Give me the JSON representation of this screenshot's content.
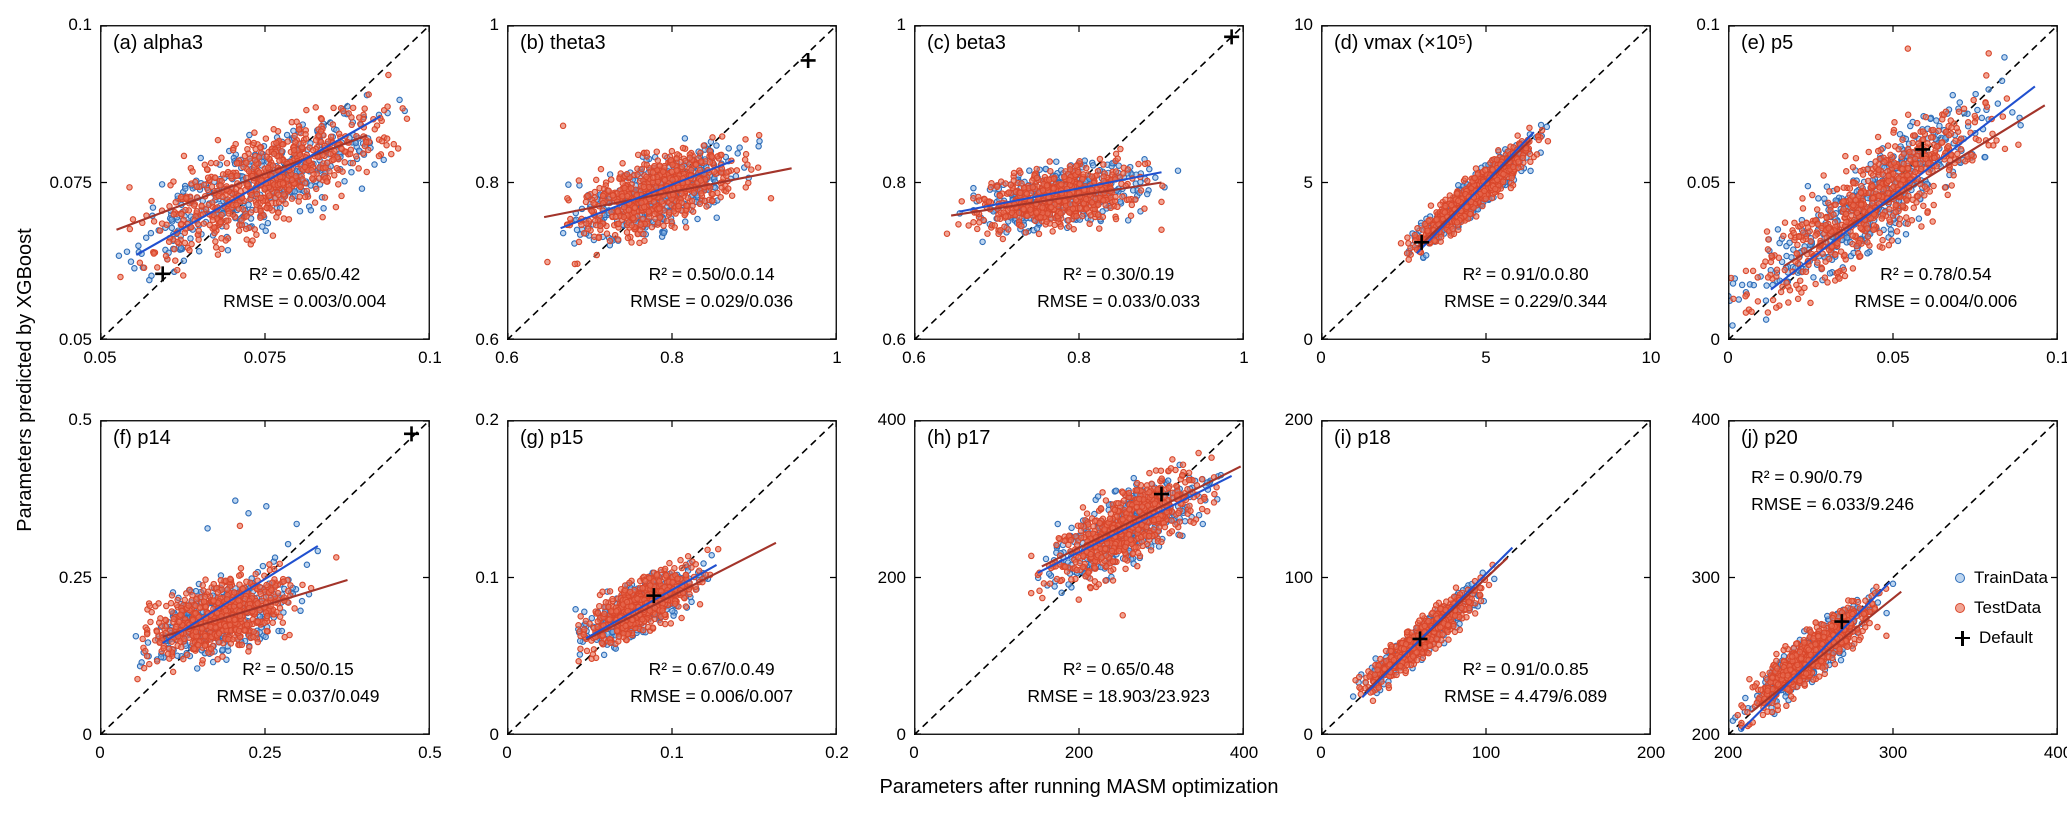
{
  "colors": {
    "train_edge": "#2f6db8",
    "train_fill": "rgba(133,178,227,0.55)",
    "test_edge": "#d9472b",
    "test_fill": "rgba(232,109,84,0.62)",
    "train_line": "#2050cf",
    "test_line": "#a3342a",
    "identity_line": "#000000",
    "default_marker": "#000000",
    "axis": "#000000"
  },
  "chart_data": {
    "type": "scatter",
    "xlabel": "Parameters after running MASM optimization",
    "ylabel": "Parameters predicted by XGBoost",
    "grid": false,
    "legend": {
      "position": "right-middle-of-panel-j",
      "items": [
        {
          "label": "TrainData",
          "series": "train",
          "marker": "circle"
        },
        {
          "label": "TestData",
          "series": "test",
          "marker": "circle"
        },
        {
          "label": "Default",
          "series": "default",
          "marker": "plus"
        }
      ]
    },
    "panels": [
      {
        "id": "a",
        "title": "(a) alpha3",
        "xlim": [
          0.05,
          0.1
        ],
        "ylim": [
          0.05,
          0.1
        ],
        "xticks": [
          0.05,
          0.075,
          0.1
        ],
        "xtick_labels": [
          "0.05",
          "0.075",
          "0.1"
        ],
        "yticks": [
          0.05,
          0.075,
          0.1
        ],
        "ytick_labels": [
          "0.05",
          "0.075",
          "0.1"
        ],
        "r2_text": "R² = 0.65/0.42",
        "rmse_text": "RMSE = 0.003/0.004",
        "annot": {
          "fx": 0.62,
          "fy": 0.75,
          "align": "center"
        },
        "default_point": [
          0.0595,
          0.0605
        ],
        "fit_train": [
          [
            0.0555,
            0.0635
          ],
          [
            0.0925,
            0.0855
          ]
        ],
        "fit_test": [
          [
            0.0525,
            0.0675
          ],
          [
            0.0905,
            0.0825
          ]
        ],
        "cluster": {
          "cx": 0.0755,
          "cy": 0.0755,
          "sx": 0.0085,
          "sy": 0.0052,
          "rho": 0.72,
          "n_train": 380,
          "n_test": 640,
          "seed": 101
        },
        "outliers": [
          [
            0.0565,
            0.0615,
            "train"
          ],
          [
            0.0578,
            0.0602,
            "train"
          ],
          [
            0.0602,
            0.0628,
            "train"
          ],
          [
            0.0617,
            0.0611,
            "test"
          ],
          [
            0.0563,
            0.0637,
            "train"
          ]
        ]
      },
      {
        "id": "b",
        "title": "(b) theta3",
        "xlim": [
          0.6,
          1
        ],
        "ylim": [
          0.6,
          1
        ],
        "xticks": [
          0.6,
          0.8,
          1
        ],
        "xtick_labels": [
          "0.6",
          "0.8",
          "1"
        ],
        "yticks": [
          0.6,
          0.8,
          1
        ],
        "ytick_labels": [
          "0.6",
          "0.8",
          "1"
        ],
        "r2_text": "R² = 0.50/0.0.14",
        "rmse_text": "RMSE = 0.029/0.036",
        "annot": {
          "fx": 0.62,
          "fy": 0.75,
          "align": "center"
        },
        "default_point": [
          0.965,
          0.955
        ],
        "fit_train": [
          [
            0.665,
            0.742
          ],
          [
            0.875,
            0.828
          ]
        ],
        "fit_test": [
          [
            0.645,
            0.756
          ],
          [
            0.945,
            0.818
          ]
        ],
        "cluster": {
          "cx": 0.782,
          "cy": 0.785,
          "sx": 0.046,
          "sy": 0.027,
          "rho": 0.55,
          "n_train": 380,
          "n_test": 640,
          "seed": 102
        },
        "outliers": [
          [
            0.668,
            0.872,
            "test"
          ],
          [
            0.905,
            0.846,
            "train"
          ],
          [
            0.649,
            0.699,
            "test"
          ],
          [
            0.92,
            0.78,
            "test"
          ]
        ]
      },
      {
        "id": "c",
        "title": "(c) beta3",
        "xlim": [
          0.6,
          1
        ],
        "ylim": [
          0.6,
          1
        ],
        "xticks": [
          0.6,
          0.8,
          1
        ],
        "xtick_labels": [
          "0.6",
          "0.8",
          "1"
        ],
        "yticks": [
          0.6,
          0.8,
          1
        ],
        "ytick_labels": [
          "0.6",
          "0.8",
          "1"
        ],
        "r2_text": "R² = 0.30/0.19",
        "rmse_text": "RMSE = 0.033/0.033",
        "annot": {
          "fx": 0.62,
          "fy": 0.75,
          "align": "center"
        },
        "default_point": [
          0.985,
          0.985
        ],
        "fit_train": [
          [
            0.655,
            0.763
          ],
          [
            0.9,
            0.813
          ]
        ],
        "fit_test": [
          [
            0.645,
            0.758
          ],
          [
            0.9,
            0.8
          ]
        ],
        "cluster": {
          "cx": 0.778,
          "cy": 0.782,
          "sx": 0.047,
          "sy": 0.02,
          "rho": 0.4,
          "n_train": 350,
          "n_test": 600,
          "seed": 103
        },
        "outliers": [
          [
            0.92,
            0.815,
            "train"
          ],
          [
            0.64,
            0.735,
            "test"
          ],
          [
            0.9,
            0.74,
            "test"
          ]
        ]
      },
      {
        "id": "d",
        "title": "(d) vmax (×10⁵)",
        "xlim": [
          0,
          10
        ],
        "ylim": [
          0,
          10
        ],
        "xticks": [
          0,
          5,
          10
        ],
        "xtick_labels": [
          "0",
          "5",
          "10"
        ],
        "yticks": [
          0,
          5,
          10
        ],
        "ytick_labels": [
          "0",
          "5",
          "10"
        ],
        "r2_text": "R² = 0.91/0.0.80",
        "rmse_text": "RMSE = 0.229/0.344",
        "annot": {
          "fx": 0.62,
          "fy": 0.75,
          "align": "center"
        },
        "default_point": [
          3.05,
          3.1
        ],
        "fit_train": [
          [
            2.9,
            2.75
          ],
          [
            6.45,
            6.6
          ]
        ],
        "fit_test": [
          [
            2.95,
            2.95
          ],
          [
            6.35,
            6.35
          ]
        ],
        "cluster": {
          "cx": 4.6,
          "cy": 4.6,
          "sx": 0.85,
          "sy": 0.8,
          "rho": 0.93,
          "n_train": 380,
          "n_test": 640,
          "seed": 104
        },
        "outliers": [
          [
            6.6,
            6.35,
            "test"
          ],
          [
            2.85,
            3.15,
            "test"
          ]
        ]
      },
      {
        "id": "e",
        "title": "(e) p5",
        "xlim": [
          0,
          0.1
        ],
        "ylim": [
          0,
          0.1
        ],
        "xticks": [
          0,
          0.05,
          0.1
        ],
        "xtick_labels": [
          "0",
          "0.05",
          "0.1"
        ],
        "yticks": [
          0,
          0.05,
          0.1
        ],
        "ytick_labels": [
          "0",
          "0.05",
          "0.1"
        ],
        "r2_text": "R² = 0.78/0.54",
        "rmse_text": "RMSE = 0.004/0.006",
        "annot": {
          "fx": 0.63,
          "fy": 0.75,
          "align": "center"
        },
        "default_point": [
          0.059,
          0.0605
        ],
        "fit_train": [
          [
            0.013,
            0.016
          ],
          [
            0.093,
            0.0805
          ]
        ],
        "fit_test": [
          [
            0.017,
            0.0235
          ],
          [
            0.096,
            0.0745
          ]
        ],
        "cluster": {
          "cx": 0.044,
          "cy": 0.0445,
          "sx": 0.0172,
          "sy": 0.0148,
          "rho": 0.86,
          "n_train": 420,
          "n_test": 660,
          "seed": 105
        },
        "outliers": [
          [
            0.0545,
            0.0925,
            "test"
          ],
          [
            0.079,
            0.091,
            "test"
          ],
          [
            0.0115,
            0.0125,
            "train"
          ],
          [
            0.088,
            0.062,
            "test"
          ]
        ]
      },
      {
        "id": "f",
        "title": "(f) p14",
        "xlim": [
          0,
          0.5
        ],
        "ylim": [
          0,
          0.5
        ],
        "xticks": [
          0,
          0.25,
          0.5
        ],
        "xtick_labels": [
          "0",
          "0.25",
          "0.5"
        ],
        "yticks": [
          0,
          0.25,
          0.5
        ],
        "ytick_labels": [
          "0",
          "0.25",
          "0.5"
        ],
        "r2_text": "R² = 0.50/0.15",
        "rmse_text": "RMSE = 0.037/0.049",
        "annot": {
          "fx": 0.6,
          "fy": 0.75,
          "align": "center"
        },
        "default_point": [
          0.472,
          0.478
        ],
        "fit_train": [
          [
            0.095,
            0.146
          ],
          [
            0.33,
            0.3
          ]
        ],
        "fit_test": [
          [
            0.095,
            0.156
          ],
          [
            0.375,
            0.246
          ]
        ],
        "cluster": {
          "cx": 0.185,
          "cy": 0.188,
          "sx": 0.05,
          "sy": 0.031,
          "rho": 0.5,
          "n_train": 380,
          "n_test": 640,
          "seed": 106
        },
        "outliers": [
          [
            0.205,
            0.372,
            "train"
          ],
          [
            0.225,
            0.352,
            "train"
          ],
          [
            0.252,
            0.363,
            "train"
          ],
          [
            0.212,
            0.332,
            "test"
          ],
          [
            0.298,
            0.335,
            "train"
          ],
          [
            0.285,
            0.303,
            "train"
          ],
          [
            0.33,
            0.292,
            "train"
          ],
          [
            0.358,
            0.282,
            "test"
          ],
          [
            0.163,
            0.328,
            "train"
          ]
        ]
      },
      {
        "id": "g",
        "title": "(g) p15",
        "xlim": [
          0,
          0.2
        ],
        "ylim": [
          0,
          0.2
        ],
        "xticks": [
          0,
          0.1,
          0.2
        ],
        "xtick_labels": [
          "0",
          "0.1",
          "0.2"
        ],
        "yticks": [
          0,
          0.1,
          0.2
        ],
        "ytick_labels": [
          "0",
          "0.1",
          "0.2"
        ],
        "r2_text": "R² = 0.67/0.0.49",
        "rmse_text": "RMSE = 0.006/0.007",
        "annot": {
          "fx": 0.62,
          "fy": 0.75,
          "align": "center"
        },
        "default_point": [
          0.089,
          0.0885
        ],
        "fit_train": [
          [
            0.048,
            0.0615
          ],
          [
            0.127,
            0.108
          ]
        ],
        "fit_test": [
          [
            0.048,
            0.0605
          ],
          [
            0.163,
            0.122
          ]
        ],
        "cluster": {
          "cx": 0.081,
          "cy": 0.082,
          "sx": 0.016,
          "sy": 0.0115,
          "rho": 0.72,
          "n_train": 350,
          "n_test": 600,
          "seed": 107
        },
        "outliers": [
          [
            0.128,
            0.118,
            "test"
          ],
          [
            0.054,
            0.049,
            "test"
          ],
          [
            0.117,
            0.083,
            "test"
          ]
        ]
      },
      {
        "id": "h",
        "title": "(h) p17",
        "xlim": [
          0,
          400
        ],
        "ylim": [
          0,
          400
        ],
        "xticks": [
          0,
          200,
          400
        ],
        "xtick_labels": [
          "0",
          "200",
          "400"
        ],
        "yticks": [
          0,
          200,
          400
        ],
        "ytick_labels": [
          "0",
          "200",
          "400"
        ],
        "r2_text": "R² = 0.65/0.48",
        "rmse_text": "RMSE = 18.903/23.923",
        "annot": {
          "fx": 0.62,
          "fy": 0.75,
          "align": "center"
        },
        "default_point": [
          300,
          306
        ],
        "fit_train": [
          [
            150,
            206
          ],
          [
            385,
            329
          ]
        ],
        "fit_test": [
          [
            155,
            214
          ],
          [
            396,
            341
          ]
        ],
        "cluster": {
          "cx": 255,
          "cy": 263,
          "sx": 43,
          "sy": 33,
          "rho": 0.72,
          "n_train": 380,
          "n_test": 640,
          "seed": 108
        },
        "outliers": [
          [
            253,
            152,
            "test"
          ],
          [
            352,
            300,
            "test"
          ],
          [
            152,
            206,
            "test"
          ],
          [
            372,
            330,
            "train"
          ]
        ]
      },
      {
        "id": "i",
        "title": "(i) p18",
        "xlim": [
          0,
          200
        ],
        "ylim": [
          0,
          200
        ],
        "xticks": [
          0,
          100,
          200
        ],
        "xtick_labels": [
          "0",
          "100",
          "200"
        ],
        "yticks": [
          0,
          100,
          200
        ],
        "ytick_labels": [
          "0",
          "100",
          "200"
        ],
        "r2_text": "R² = 0.91/0.0.85",
        "rmse_text": "RMSE = 4.479/6.089",
        "annot": {
          "fx": 0.62,
          "fy": 0.75,
          "align": "center"
        },
        "default_point": [
          60,
          61
        ],
        "fit_train": [
          [
            25,
            24
          ],
          [
            116,
            119
          ]
        ],
        "fit_test": [
          [
            27,
            27.5
          ],
          [
            113,
            112.5
          ]
        ],
        "cluster": {
          "cx": 62,
          "cy": 62,
          "sx": 16,
          "sy": 15,
          "rho": 0.93,
          "n_train": 320,
          "n_test": 560,
          "seed": 109
        },
        "outliers": [
          [
            104,
            108,
            "test"
          ],
          [
            30,
            27,
            "test"
          ],
          [
            98,
            103,
            "train"
          ]
        ]
      },
      {
        "id": "j",
        "title": "(j) p20",
        "xlim": [
          200,
          400
        ],
        "ylim": [
          200,
          400
        ],
        "xticks": [
          200,
          300,
          400
        ],
        "xtick_labels": [
          "200",
          "300",
          "400"
        ],
        "yticks": [
          200,
          300,
          400
        ],
        "ytick_labels": [
          "200",
          "300",
          "400"
        ],
        "r2_text": "R² = 0.90/0.79",
        "rmse_text": "RMSE = 6.033/9.246",
        "annot": {
          "fx": 0.07,
          "fy": 0.14,
          "align": "left"
        },
        "default_point": [
          269,
          272
        ],
        "fit_train": [
          [
            208,
            203
          ],
          [
            298,
            297
          ]
        ],
        "fit_test": [
          [
            214,
            214.5
          ],
          [
            305,
            291
          ]
        ],
        "cluster": {
          "cx": 250,
          "cy": 250,
          "sx": 17.5,
          "sy": 16.5,
          "rho": 0.9,
          "n_train": 420,
          "n_test": 660,
          "seed": 110
        },
        "outliers": [
          [
            300,
            296,
            "train"
          ],
          [
            208,
            204,
            "train"
          ],
          [
            296,
            263,
            "test"
          ],
          [
            215,
            208,
            "test"
          ]
        ],
        "has_legend": true
      }
    ]
  }
}
